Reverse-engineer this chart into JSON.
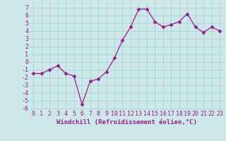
{
  "x": [
    0,
    1,
    2,
    3,
    4,
    5,
    6,
    7,
    8,
    9,
    10,
    11,
    12,
    13,
    14,
    15,
    16,
    17,
    18,
    19,
    20,
    21,
    22,
    23
  ],
  "y": [
    -1.5,
    -1.5,
    -1.0,
    -0.5,
    -1.5,
    -1.8,
    -5.5,
    -2.5,
    -2.2,
    -1.3,
    0.5,
    2.8,
    4.5,
    6.8,
    6.8,
    5.2,
    4.5,
    4.8,
    5.2,
    6.2,
    4.5,
    3.8,
    4.5,
    4.0
  ],
  "line_color": "#9b1b8e",
  "marker": "D",
  "marker_size": 2.5,
  "bg_color": "#cce8e8",
  "grid_color": "#aacece",
  "xlabel": "Windchill (Refroidissement éolien,°C)",
  "xlabel_fontsize": 6.5,
  "tick_fontsize": 6,
  "ylim": [
    -6.2,
    7.8
  ],
  "xlim": [
    -0.5,
    23.5
  ],
  "yticks": [
    -6,
    -5,
    -4,
    -3,
    -2,
    -1,
    0,
    1,
    2,
    3,
    4,
    5,
    6,
    7
  ],
  "xtick_labels": [
    "0",
    "1",
    "2",
    "3",
    "4",
    "5",
    "6",
    "7",
    "8",
    "9",
    "10",
    "11",
    "12",
    "13",
    "14",
    "15",
    "16",
    "17",
    "18",
    "19",
    "20",
    "21",
    "22",
    "23"
  ]
}
